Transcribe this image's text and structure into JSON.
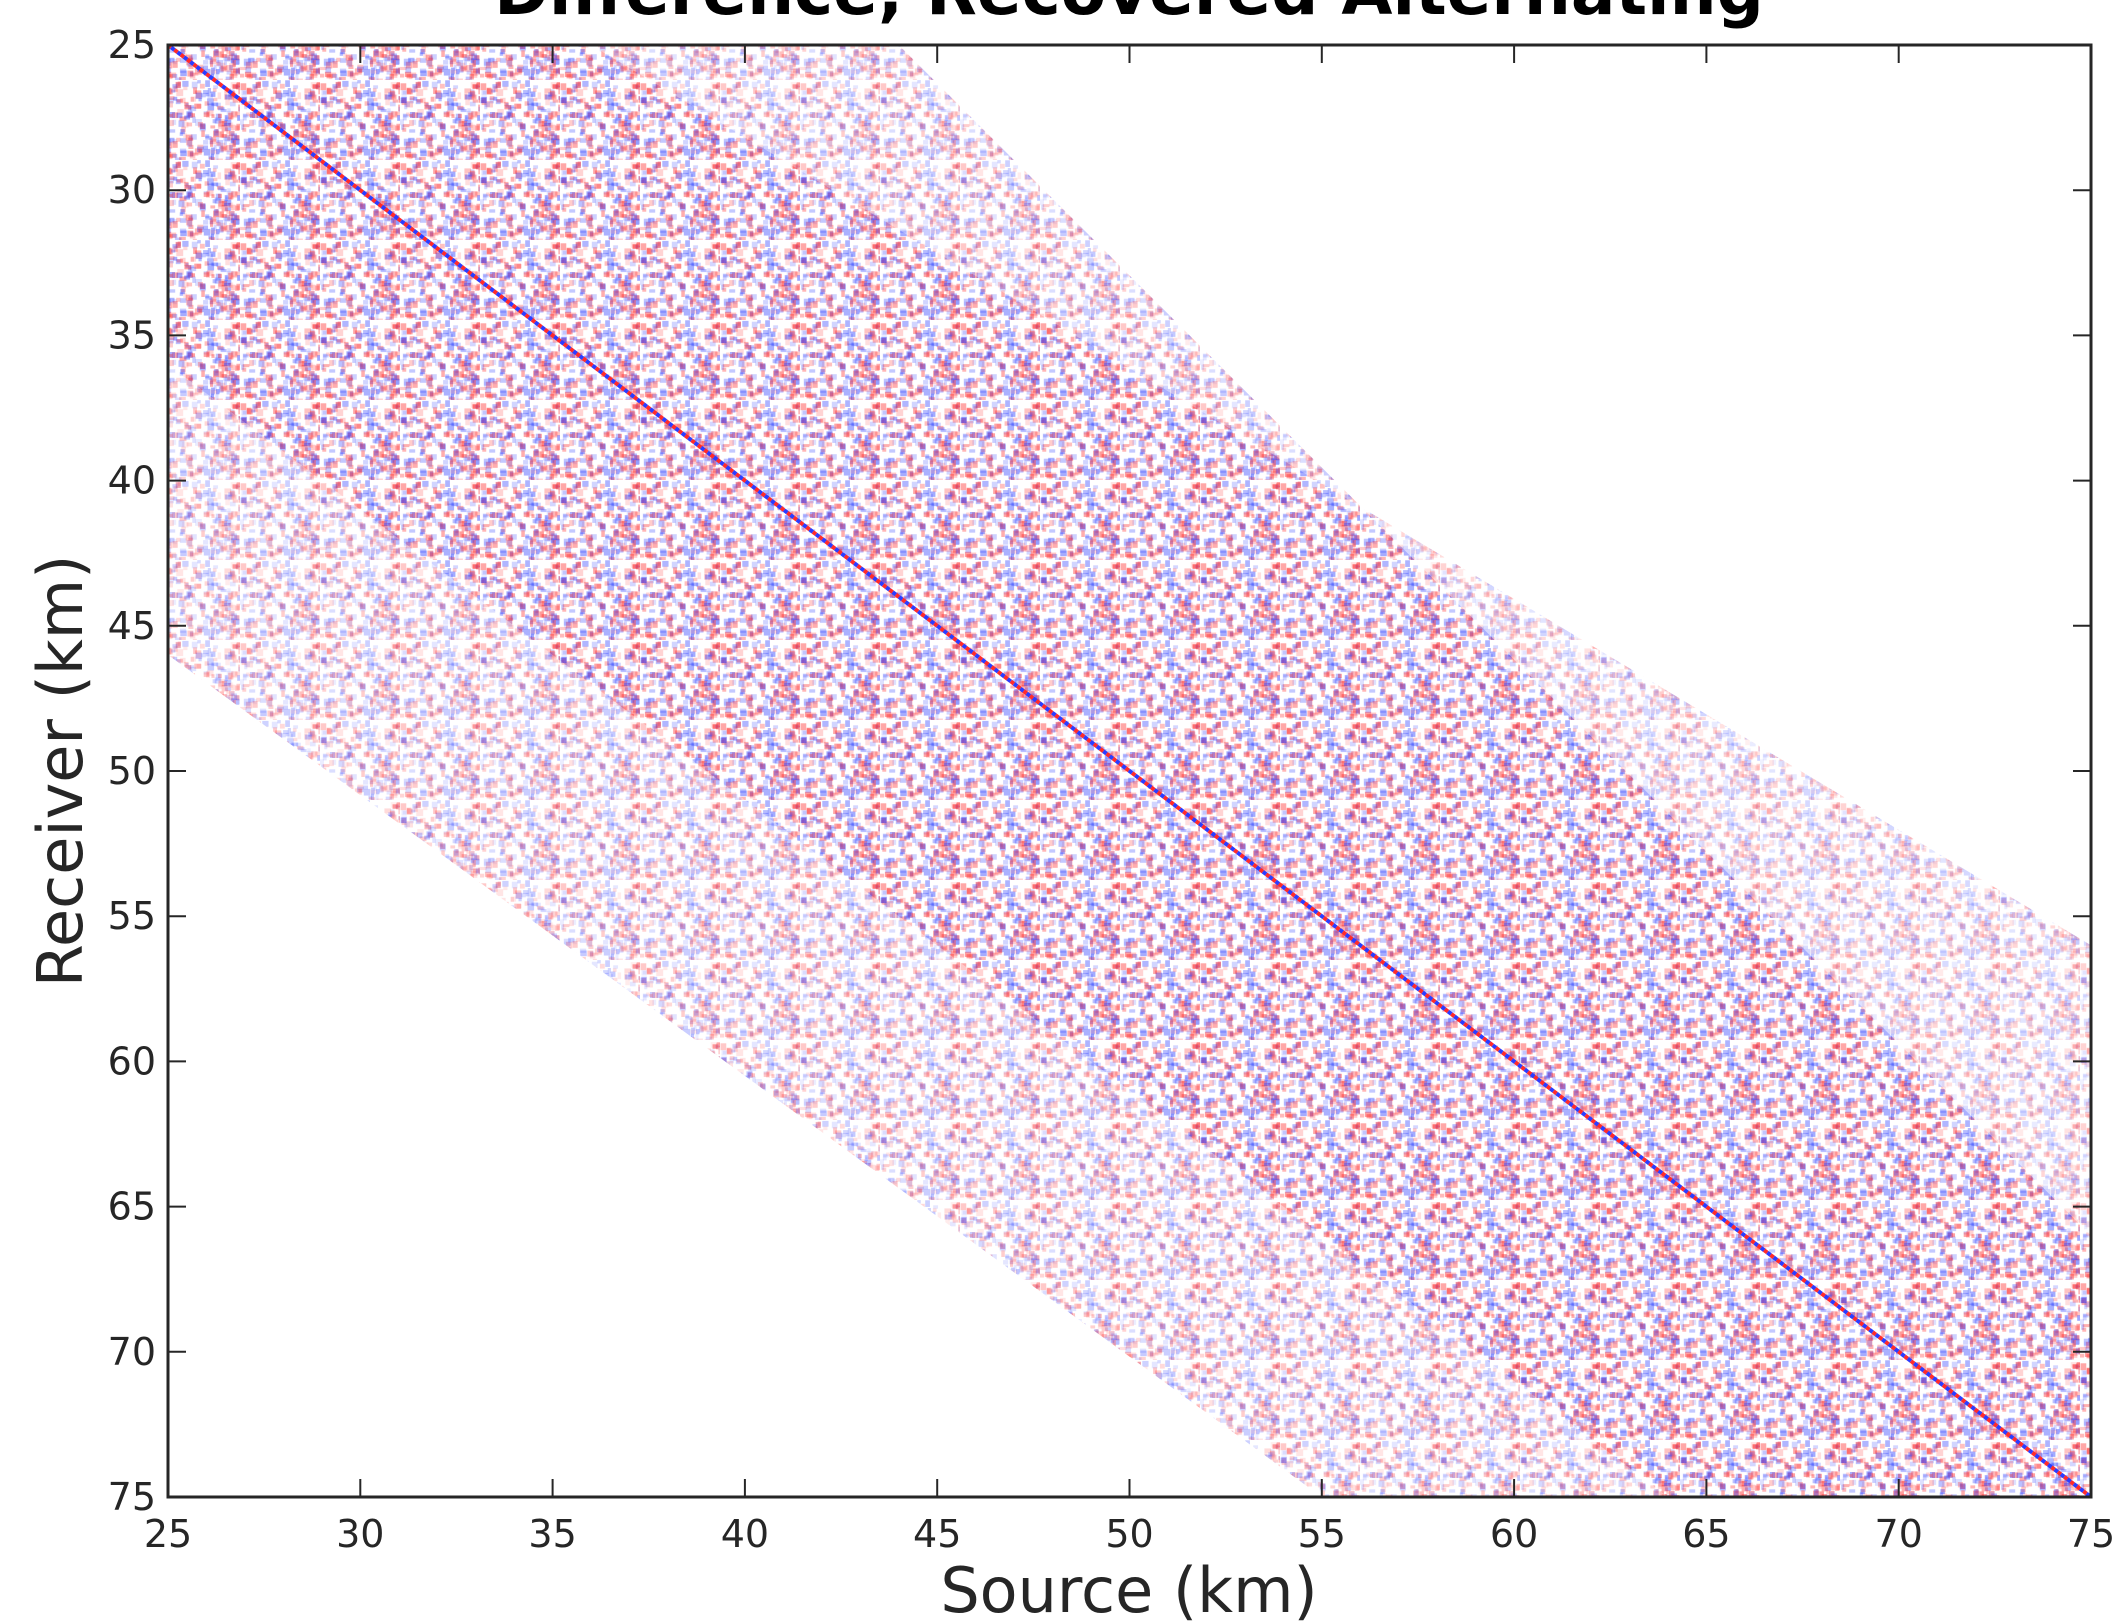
{
  "chart_data": {
    "type": "heatmap",
    "title": "Difference, Recovered Alternating",
    "xlabel": "Source (km)",
    "ylabel": "Receiver (km)",
    "xlim": [
      25,
      75
    ],
    "ylim": [
      25,
      75
    ],
    "y_inverted": true,
    "xticks": [
      25,
      30,
      35,
      40,
      45,
      50,
      55,
      60,
      65,
      70,
      75
    ],
    "yticks": [
      25,
      30,
      35,
      40,
      45,
      50,
      55,
      60,
      65,
      70,
      75
    ],
    "colormap": [
      "#2b3cff",
      "#ffffff",
      "#ff2b2b"
    ]
  }
}
